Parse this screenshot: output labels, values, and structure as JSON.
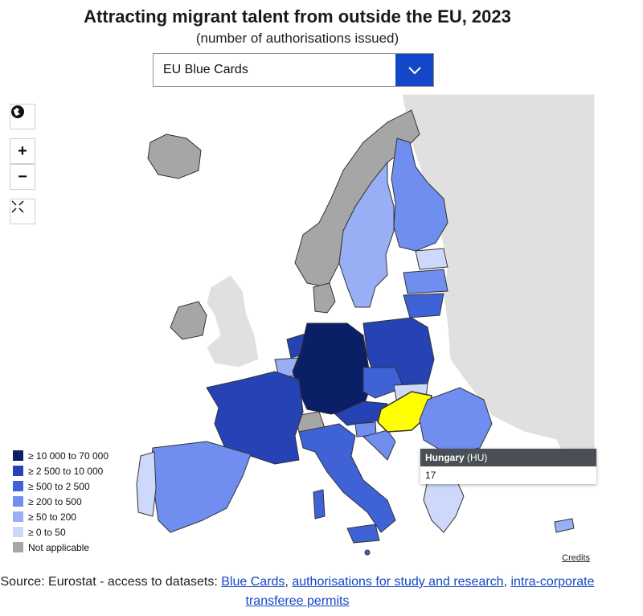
{
  "header": {
    "title": "Attracting migrant talent from outside the EU, 2023",
    "subtitle": "(number of authorisations issued)"
  },
  "dataset_select": {
    "selected": "EU Blue Cards",
    "icon": "chevron-down-icon"
  },
  "map_controls": {
    "globe_icon": "globe-icon",
    "zoom_in_label": "+",
    "zoom_out_label": "−",
    "reset_icon": "collapse-icon"
  },
  "colors": {
    "class_10000_70000": "#0b1f66",
    "class_2500_10000": "#2543b4",
    "class_500_2500": "#3f62d6",
    "class_200_500": "#6f8ef0",
    "class_50_200": "#98aff5",
    "class_0_50": "#cdd8fa",
    "not_applicable": "#a6a6a6",
    "non_eu": "#e0e0e0",
    "highlight": "#ffff00"
  },
  "legend": [
    {
      "label": "≥ 10 000 to 70 000",
      "color": "#0b1f66"
    },
    {
      "label": "≥ 2 500 to 10 000",
      "color": "#2543b4"
    },
    {
      "label": "≥ 500 to 2 500",
      "color": "#3f62d6"
    },
    {
      "label": "≥ 200 to 500",
      "color": "#6f8ef0"
    },
    {
      "label": "≥ 50 to 200",
      "color": "#98aff5"
    },
    {
      "label": "≥ 0 to 50",
      "color": "#cdd8fa"
    },
    {
      "label": "Not applicable",
      "color": "#a6a6a6"
    }
  ],
  "tooltip": {
    "country": "Hungary",
    "code": "(HU)",
    "value": "17"
  },
  "credits": "Credits",
  "source": {
    "prefix": "Source: Eurostat - access to datasets: ",
    "link1": "Blue Cards",
    "sep1": ", ",
    "link2": "authorisations for study and research",
    "sep2": ", ",
    "link3": "intra-corporate transferee permits"
  }
}
